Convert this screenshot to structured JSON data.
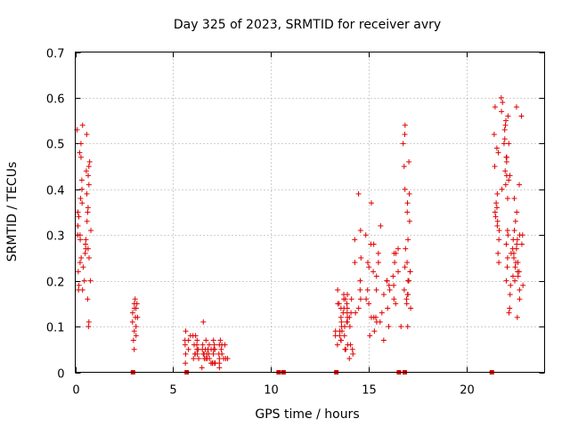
{
  "chart_data": {
    "type": "scatter",
    "title": "Day 325 of 2023, SRMTID for receiver avry",
    "xlabel": "GPS time / hours",
    "ylabel": "SRMTID / TECUs",
    "xlim": [
      0,
      24
    ],
    "ylim": [
      0,
      0.7
    ],
    "xticks": [
      0,
      5,
      10,
      15,
      20
    ],
    "xtick_labels": [
      "0",
      "5",
      "10",
      "15",
      "20"
    ],
    "yticks": [
      0,
      0.1,
      0.2,
      0.3,
      0.4,
      0.5,
      0.6,
      0.7
    ],
    "ytick_labels": [
      "0",
      "0.1",
      "0.2",
      "0.3",
      "0.4",
      "0.5",
      "0.6",
      "0.7"
    ],
    "grid": true,
    "marker": "plus",
    "color": "#e00000",
    "clusters": [
      {
        "x_range": [
          0.0,
          0.8
        ],
        "y_values": [
          0.28,
          0.3,
          0.26,
          0.31,
          0.29,
          0.27,
          0.32,
          0.25,
          0.44,
          0.43,
          0.39,
          0.38,
          0.35,
          0.22,
          0.2,
          0.19,
          0.18,
          0.16,
          0.11,
          0.1,
          0.53,
          0.54,
          0.52,
          0.5,
          0.48,
          0.47,
          0.46,
          0.45,
          0.42,
          0.4,
          0.36,
          0.35,
          0.3,
          0.29,
          0.25,
          0.23,
          0.2,
          0.18,
          0.33,
          0.34,
          0.37,
          0.41,
          0.27,
          0.24
        ]
      },
      {
        "x_range": [
          2.9,
          3.2
        ],
        "y_values": [
          0.16,
          0.15,
          0.14,
          0.13,
          0.12,
          0.11,
          0.1,
          0.09,
          0.08,
          0.07,
          0.05,
          0.15,
          0.14,
          0.12
        ]
      },
      {
        "x_range": [
          5.6,
          7.8
        ],
        "y_values": [
          0.11,
          0.09,
          0.08,
          0.08,
          0.07,
          0.07,
          0.07,
          0.06,
          0.06,
          0.06,
          0.06,
          0.05,
          0.05,
          0.05,
          0.05,
          0.05,
          0.04,
          0.04,
          0.04,
          0.04,
          0.04,
          0.04,
          0.03,
          0.03,
          0.03,
          0.03,
          0.03,
          0.02,
          0.02,
          0.02,
          0.02,
          0.01,
          0.01,
          0.06,
          0.05,
          0.04,
          0.03,
          0.07,
          0.08,
          0.06,
          0.05,
          0.04,
          0.03,
          0.02,
          0.05,
          0.06,
          0.07,
          0.04,
          0.03,
          0.02,
          0.05,
          0.06,
          0.04,
          0.03,
          0.05,
          0.04,
          0.06,
          0.03,
          0.02,
          0.07
        ]
      },
      {
        "x_range": [
          13.3,
          14.2
        ],
        "y_values": [
          0.03,
          0.04,
          0.05,
          0.06,
          0.07,
          0.08,
          0.09,
          0.1,
          0.11,
          0.12,
          0.13,
          0.14,
          0.15,
          0.16,
          0.17,
          0.18,
          0.16,
          0.15,
          0.14,
          0.13,
          0.12,
          0.11,
          0.1,
          0.09,
          0.08,
          0.07,
          0.06,
          0.05,
          0.05,
          0.06,
          0.08,
          0.1,
          0.12,
          0.14,
          0.16,
          0.17,
          0.15,
          0.13,
          0.11,
          0.09
        ]
      },
      {
        "x_range": [
          14.2,
          17.2
        ],
        "y_values": [
          0.1,
          0.12,
          0.14,
          0.16,
          0.18,
          0.2,
          0.22,
          0.24,
          0.26,
          0.28,
          0.3,
          0.32,
          0.35,
          0.37,
          0.39,
          0.4,
          0.12,
          0.14,
          0.16,
          0.18,
          0.2,
          0.22,
          0.24,
          0.26,
          0.28,
          0.1,
          0.08,
          0.07,
          0.15,
          0.17,
          0.19,
          0.21,
          0.23,
          0.25,
          0.27,
          0.29,
          0.31,
          0.13,
          0.11,
          0.09,
          0.16,
          0.18,
          0.2,
          0.22,
          0.24,
          0.26,
          0.14,
          0.12,
          0.1,
          0.17,
          0.19,
          0.21,
          0.23,
          0.15,
          0.13,
          0.11,
          0.18,
          0.2,
          0.22,
          0.24
        ]
      },
      {
        "x_range": [
          16.7,
          17.1
        ],
        "y_values": [
          0.54,
          0.52,
          0.5,
          0.46,
          0.45,
          0.39,
          0.37,
          0.33,
          0.29,
          0.27,
          0.24,
          0.2,
          0.18,
          0.17,
          0.16,
          0.15
        ]
      },
      {
        "x_range": [
          21.4,
          22.2
        ],
        "y_values": [
          0.59,
          0.58,
          0.56,
          0.54,
          0.52,
          0.5,
          0.48,
          0.46,
          0.44,
          0.42,
          0.4,
          0.38,
          0.36,
          0.34,
          0.32,
          0.3,
          0.28,
          0.26,
          0.24,
          0.23,
          0.55,
          0.53,
          0.51,
          0.49,
          0.47,
          0.43,
          0.41,
          0.39,
          0.37,
          0.35,
          0.33,
          0.31,
          0.6,
          0.57,
          0.45,
          0.29
        ]
      },
      {
        "x_range": [
          22.0,
          22.9
        ],
        "y_values": [
          0.58,
          0.56,
          0.5,
          0.47,
          0.43,
          0.41,
          0.38,
          0.35,
          0.33,
          0.31,
          0.3,
          0.29,
          0.28,
          0.27,
          0.26,
          0.25,
          0.24,
          0.23,
          0.22,
          0.21,
          0.2,
          0.19,
          0.18,
          0.16,
          0.14,
          0.13,
          0.12,
          0.28,
          0.27,
          0.26,
          0.3,
          0.29,
          0.25,
          0.22,
          0.2,
          0.31,
          0.24,
          0.21,
          0.19,
          0.17
        ]
      }
    ],
    "zero_markers_x": [
      2.95,
      5.7,
      10.4,
      10.65,
      13.35,
      16.55,
      16.85,
      21.3
    ]
  }
}
